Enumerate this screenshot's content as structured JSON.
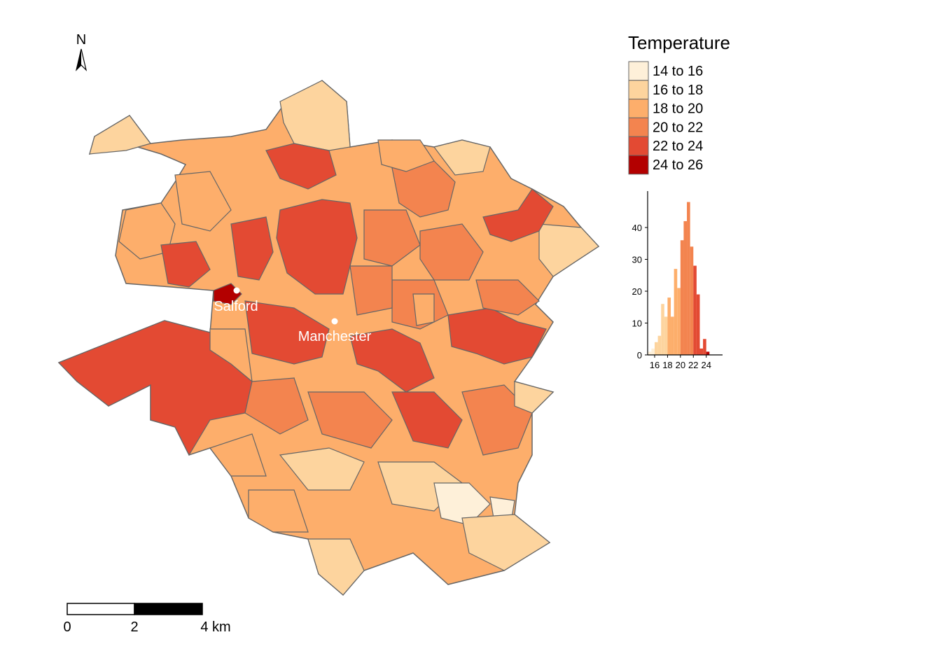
{
  "map": {
    "north_label": "N",
    "places": [
      {
        "name": "Salford"
      },
      {
        "name": "Manchester"
      }
    ]
  },
  "legend": {
    "title": "Temperature",
    "classes": [
      {
        "label": "14 to 16",
        "color": "#FEF0D9"
      },
      {
        "label": "16 to 18",
        "color": "#FDD49E"
      },
      {
        "label": "18 to 20",
        "color": "#FDAE6B"
      },
      {
        "label": "20 to 22",
        "color": "#F3844F"
      },
      {
        "label": "22 to 24",
        "color": "#E34A33"
      },
      {
        "label": "24 to 26",
        "color": "#B30000"
      }
    ]
  },
  "chart_data": {
    "type": "bar",
    "title": "",
    "xlabel": "",
    "ylabel": "",
    "x_ticks": [
      "16",
      "18",
      "20",
      "22",
      "24"
    ],
    "y_ticks": [
      0,
      10,
      20,
      30,
      40
    ],
    "ylim": [
      0,
      50
    ],
    "bin_width": 0.5,
    "bins": [
      {
        "x": 15.0,
        "count": 1
      },
      {
        "x": 15.5,
        "count": 2
      },
      {
        "x": 16.0,
        "count": 4
      },
      {
        "x": 16.5,
        "count": 6
      },
      {
        "x": 17.0,
        "count": 16
      },
      {
        "x": 17.5,
        "count": 12
      },
      {
        "x": 18.0,
        "count": 18
      },
      {
        "x": 18.5,
        "count": 12
      },
      {
        "x": 19.0,
        "count": 27
      },
      {
        "x": 19.5,
        "count": 21
      },
      {
        "x": 20.0,
        "count": 36
      },
      {
        "x": 20.5,
        "count": 42
      },
      {
        "x": 21.0,
        "count": 48
      },
      {
        "x": 21.5,
        "count": 34
      },
      {
        "x": 22.0,
        "count": 28
      },
      {
        "x": 22.5,
        "count": 19
      },
      {
        "x": 23.0,
        "count": 2
      },
      {
        "x": 23.5,
        "count": 5
      },
      {
        "x": 24.0,
        "count": 1
      }
    ]
  },
  "scale_bar": {
    "labels": [
      "0",
      "2",
      "4 km"
    ]
  }
}
